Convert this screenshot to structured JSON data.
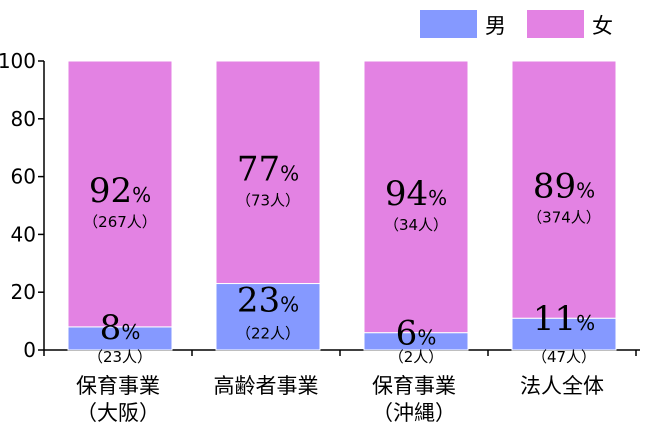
{
  "chart_data": {
    "type": "bar",
    "stacked": true,
    "orientation": "vertical",
    "title": "",
    "xlabel": "",
    "ylabel": "",
    "ylim": [
      0,
      100
    ],
    "yticks": [
      "0",
      "20",
      "40",
      "60",
      "80",
      "100"
    ],
    "grid": false,
    "legend_position": "top-right",
    "categories": [
      [
        "保育事業",
        "（大阪）"
      ],
      [
        "高齢者事業"
      ],
      [
        "保育事業",
        "（沖縄）"
      ],
      [
        "法人全体"
      ]
    ],
    "series": [
      {
        "name": "男",
        "color": "#8599ff",
        "values": [
          8,
          23,
          6,
          11
        ],
        "percent_labels": [
          "8",
          "23",
          "6",
          "11"
        ],
        "count_labels": [
          "（23人）",
          "（22人）",
          "（2人）",
          "（47人）"
        ]
      },
      {
        "name": "女",
        "color": "#e382e3",
        "values": [
          92,
          77,
          94,
          89
        ],
        "percent_labels": [
          "92",
          "77",
          "94",
          "89"
        ],
        "count_labels": [
          "（267人）",
          "（73人）",
          "（34人）",
          "（374人）"
        ]
      }
    ],
    "percent_sign": "%"
  }
}
